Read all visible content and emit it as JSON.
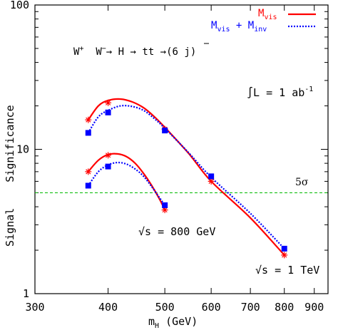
{
  "chart_data": {
    "type": "line",
    "title": "",
    "xlabel": "m",
    "xlabel_sub": "H",
    "xlabel_unit": " (GeV)",
    "ylabel": "Signal    Significance",
    "x_scale": "log",
    "y_scale": "log",
    "xlim": [
      300,
      950
    ],
    "ylim": [
      1,
      100
    ],
    "x_tick_labels": [
      "300",
      "400",
      "500",
      "600",
      "700",
      "800",
      "900"
    ],
    "x_ticks": [
      300,
      400,
      500,
      600,
      700,
      800,
      900
    ],
    "y_tick_labels": [
      "1",
      "10",
      "100"
    ],
    "y_ticks": [
      1,
      10,
      100
    ],
    "grid": false,
    "legend_position": "top-right",
    "legend": [
      {
        "text": "M",
        "sub": "vis",
        "color": "#ff0000",
        "style": "solid"
      },
      {
        "text": "M",
        "sub": "vis",
        "text2": " + M",
        "sub2": "inv",
        "color": "#0000ff",
        "style": "dotted"
      }
    ],
    "reference_line": {
      "y": 5,
      "label": "5σ",
      "color": "#00bb00",
      "style": "dashed"
    },
    "series": [
      {
        "group": "1 TeV",
        "type": "vis",
        "color": "#ff0000",
        "marker": "star",
        "x": [
          370,
          400,
          500,
          600,
          800
        ],
        "y": [
          16,
          21,
          13.8,
          6,
          1.85
        ],
        "curve_x": [
          370,
          385,
          400,
          420,
          440,
          460,
          480,
          500,
          550,
          600,
          700,
          800
        ],
        "curve_y": [
          16,
          20,
          21.8,
          22.3,
          21.3,
          19.4,
          16.8,
          14.2,
          9.3,
          6.0,
          3.35,
          1.85
        ]
      },
      {
        "group": "1 TeV",
        "type": "vis+inv",
        "color": "#0000ff",
        "marker": "square",
        "x": [
          370,
          400,
          500,
          600,
          800
        ],
        "y": [
          13,
          18,
          13.5,
          6.5,
          2.05
        ],
        "curve_x": [
          370,
          385,
          400,
          420,
          440,
          460,
          480,
          500,
          550,
          600,
          700,
          800
        ],
        "curve_y": [
          13,
          16.8,
          18.6,
          20,
          19.8,
          18.6,
          16.3,
          14,
          9.4,
          6.4,
          3.6,
          2.05
        ]
      },
      {
        "group": "800 GeV",
        "type": "vis",
        "color": "#ff0000",
        "marker": "star",
        "x": [
          370,
          400,
          500
        ],
        "y": [
          7,
          9.1,
          3.8
        ],
        "curve_x": [
          370,
          385,
          400,
          415,
          430,
          445,
          460,
          475,
          490,
          500
        ],
        "curve_y": [
          7,
          8.4,
          9.2,
          9.3,
          8.9,
          8.0,
          6.8,
          5.6,
          4.5,
          3.8
        ]
      },
      {
        "group": "800 GeV",
        "type": "vis+inv",
        "color": "#0000ff",
        "marker": "square",
        "x": [
          370,
          400,
          500
        ],
        "y": [
          5.6,
          7.6,
          4.1
        ],
        "curve_x": [
          370,
          385,
          400,
          415,
          430,
          445,
          460,
          475,
          490,
          500
        ],
        "curve_y": [
          5.6,
          7.0,
          7.8,
          8.1,
          7.9,
          7.3,
          6.5,
          5.5,
          4.6,
          4.1
        ]
      }
    ],
    "annotations": {
      "process": {
        "w": "W",
        "wplus_sup": "+",
        "wminus": "W",
        "wminus_sup": "−",
        "arrow_h": "→ H → t",
        "tbar": "t",
        "rest": " →(6 j)"
      },
      "lumi": {
        "integral": "∫",
        "text": "L = 1 ab",
        "sup": "-1"
      },
      "sqrt_s_800": {
        "root": "√",
        "text": "s = 800 GeV"
      },
      "sqrt_s_1tev": {
        "root": "√",
        "text": "s = 1 TeV"
      }
    }
  }
}
